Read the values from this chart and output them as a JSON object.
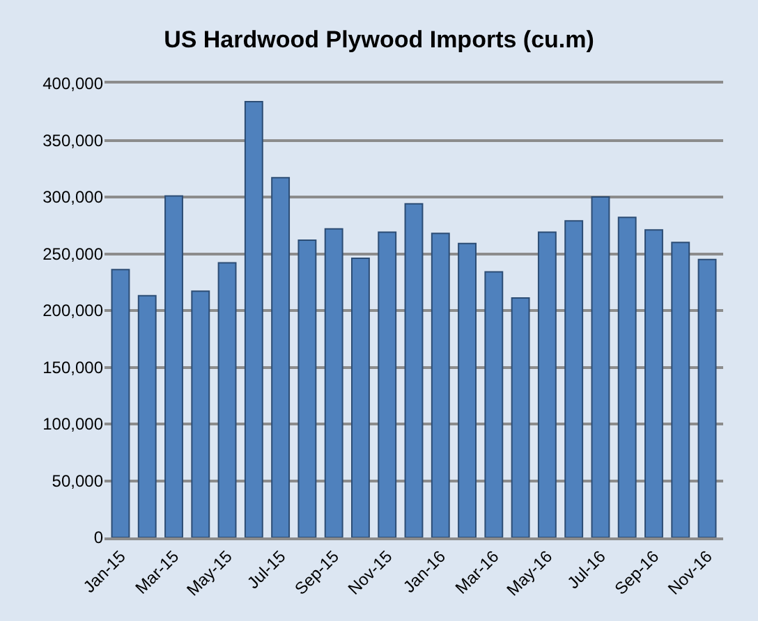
{
  "chart_data": {
    "type": "bar",
    "title": "US Hardwood Plywood Imports (cu.m)",
    "categories": [
      "Jan-15",
      null,
      "Mar-15",
      null,
      "May-15",
      null,
      "Jul-15",
      null,
      "Sep-15",
      null,
      "Nov-15",
      null,
      "Jan-16",
      null,
      "Mar-16",
      null,
      "May-16",
      null,
      "Jul-16",
      null,
      "Sep-16",
      null,
      "Nov-16"
    ],
    "values": [
      236000,
      213000,
      301000,
      217000,
      242000,
      384000,
      317000,
      262000,
      272000,
      246000,
      269000,
      294000,
      268000,
      259000,
      234000,
      211000,
      269000,
      279000,
      300000,
      282000,
      271000,
      260000,
      245000
    ],
    "color": "#4f81bd",
    "ylim": [
      0,
      400000
    ],
    "yticks": [
      {
        "value": 0,
        "label": "0"
      },
      {
        "value": 50000,
        "label": "50,000"
      },
      {
        "value": 100000,
        "label": "100,000"
      },
      {
        "value": 150000,
        "label": "150,000"
      },
      {
        "value": 200000,
        "label": "200,000"
      },
      {
        "value": 250000,
        "label": "250,000"
      },
      {
        "value": 300000,
        "label": "300,000"
      },
      {
        "value": 350000,
        "label": "350,000"
      },
      {
        "value": 400000,
        "label": "400,000"
      }
    ],
    "grid": "y"
  }
}
